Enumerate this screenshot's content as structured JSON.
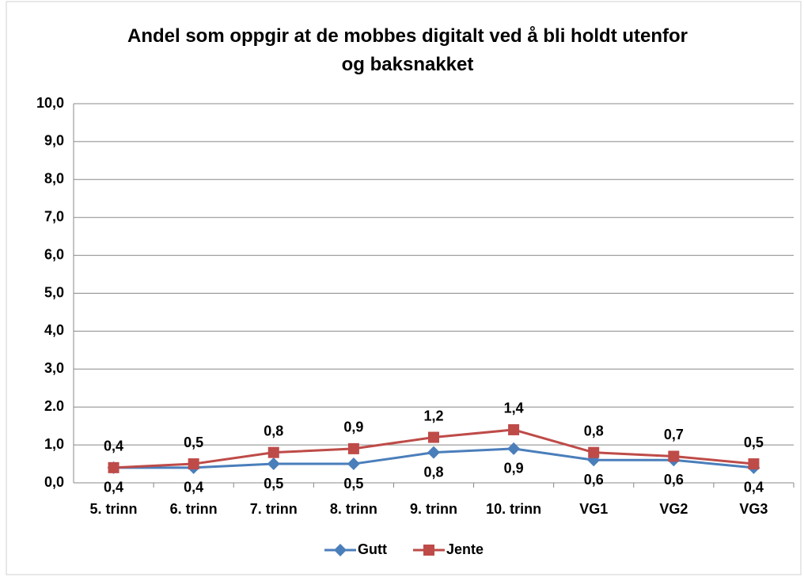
{
  "chart_data": {
    "type": "line",
    "title": "Andel som oppgir at de mobbes digitalt ved å bli holdt utenfor og baksnakket",
    "categories": [
      "5. trinn",
      "6. trinn",
      "7. trinn",
      "8. trinn",
      "9. trinn",
      "10. trinn",
      "VG1",
      "VG2",
      "VG3"
    ],
    "series": [
      {
        "name": "Gutt",
        "color": "#4a7ebb",
        "marker": "diamond",
        "values": [
          0.4,
          0.4,
          0.5,
          0.5,
          0.8,
          0.9,
          0.6,
          0.6,
          0.4
        ],
        "value_labels": [
          "0,4",
          "0,4",
          "0,5",
          "0,5",
          "0,8",
          "0,9",
          "0,6",
          "0,6",
          "0,4"
        ]
      },
      {
        "name": "Jente",
        "color": "#be4b48",
        "marker": "square",
        "values": [
          0.4,
          0.5,
          0.8,
          0.9,
          1.2,
          1.4,
          0.8,
          0.7,
          0.5
        ],
        "value_labels": [
          "0,4",
          "0,5",
          "0,8",
          "0,9",
          "1,2",
          "1,4",
          "0,8",
          "0,7",
          "0,5"
        ]
      }
    ],
    "ylim": [
      0,
      10
    ],
    "yticks": [
      {
        "value": 0,
        "label": "0,0"
      },
      {
        "value": 1,
        "label": "1,0"
      },
      {
        "value": 2,
        "label": "2.0"
      },
      {
        "value": 3,
        "label": "3,0"
      },
      {
        "value": 4,
        "label": "4,0"
      },
      {
        "value": 5,
        "label": "5,0"
      },
      {
        "value": 6,
        "label": "6,0"
      },
      {
        "value": 7,
        "label": "7,0"
      },
      {
        "value": 8,
        "label": "8,0"
      },
      {
        "value": 9,
        "label": "9,0"
      },
      {
        "value": 10,
        "label": "10,0"
      }
    ],
    "grid": true,
    "legend": "bottom"
  }
}
